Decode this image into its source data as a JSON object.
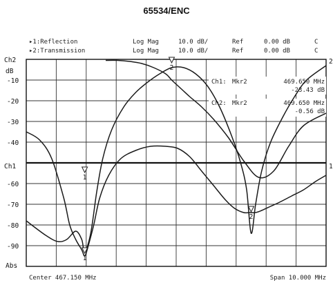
{
  "chart_data": {
    "type": "line",
    "title": "65534/ENC",
    "channels": [
      {
        "label": "▸1:Reflection",
        "format": "Log Mag",
        "scale": "10.0 dB/",
        "ref_label": "Ref",
        "ref_value": "0.00 dB",
        "flag": "C"
      },
      {
        "label": "▸2:Transmission",
        "format": "Log Mag",
        "scale": "10.0 dB/",
        "ref_label": "Ref",
        "ref_value": "0.00 dB",
        "flag": "C"
      }
    ],
    "markers": [
      {
        "channel": "Ch1:",
        "name": "Mkr2",
        "freq": "469.650 MHz",
        "value": "-23.43 dB"
      },
      {
        "channel": "Ch2:",
        "name": "Mkr2",
        "freq": "469.650 MHz",
        "value": "-0.56 dB"
      }
    ],
    "center": "Center 467.150 MHz",
    "span": "Span 10.000 MHz",
    "xlim": [
      462.15,
      472.15
    ],
    "ylim": [
      -100,
      0
    ],
    "grid": true,
    "ylabel_unit": "dB",
    "y_ticks": [
      {
        "value": -10,
        "label": "-10"
      },
      {
        "value": -20,
        "label": "-20"
      },
      {
        "value": -30,
        "label": "-30"
      },
      {
        "value": -40,
        "label": "-40"
      },
      {
        "value": -60,
        "label": "-60"
      },
      {
        "value": -70,
        "label": "-70"
      },
      {
        "value": -80,
        "label": "-80"
      },
      {
        "value": -90,
        "label": "-90"
      }
    ],
    "left_labels": {
      "top": "Ch2",
      "mid": "Ch1",
      "bottom": "Abs"
    },
    "right_labels": {
      "top": "2",
      "mid": "1"
    },
    "marker_labels": [
      {
        "text": "1",
        "x": 464.1,
        "y": -56
      },
      {
        "text": "1",
        "x": 464.1,
        "y": -95
      },
      {
        "text": "2",
        "x": 469.65,
        "y": -75
      },
      {
        "text": "2",
        "x": 467.0,
        "y": -3
      }
    ],
    "series": [
      {
        "name": "",
        "x": [
          462.15,
          462.6,
          463.0,
          463.4,
          463.6,
          463.8,
          464.0,
          464.1,
          464.2,
          464.4,
          464.6,
          464.9,
          465.3,
          465.8,
          466.3,
          466.8,
          467.2,
          467.6,
          468.0,
          468.4,
          468.8,
          469.1,
          469.4,
          469.6,
          469.8,
          470.0,
          470.3,
          470.6,
          471.0,
          471.4,
          471.8,
          472.15
        ],
        "values": [
          -35,
          -39,
          -48,
          -67,
          -80,
          -87,
          -92,
          -95,
          -91,
          -80,
          -67,
          -56,
          -48,
          -44,
          -42,
          -42,
          -43,
          -47,
          -54,
          -61,
          -68,
          -72,
          -74,
          -74,
          -74,
          -73,
          -71,
          -69,
          -66,
          -63,
          -59,
          -56
        ]
      },
      {
        "name": "",
        "x": [
          462.15,
          462.8,
          463.2,
          463.5,
          463.8,
          464.0,
          464.1,
          464.3,
          464.5,
          464.7,
          465.0,
          465.4,
          465.8,
          466.2,
          466.6,
          467.0,
          467.4,
          467.8,
          468.2,
          468.6,
          469.0,
          469.3,
          469.5,
          469.65,
          469.8,
          470.0,
          470.3,
          470.7,
          471.1,
          471.5,
          472.15
        ],
        "values": [
          -78,
          -85,
          -88,
          -87,
          -83,
          -87,
          -93,
          -84,
          -64,
          -48,
          -34,
          -23,
          -16,
          -11,
          -7,
          -4,
          -4,
          -7,
          -13,
          -23,
          -37,
          -50,
          -63,
          -84,
          -70,
          -54,
          -40,
          -28,
          -18,
          -10,
          -3
        ]
      },
      {
        "name": "",
        "x": [
          464.8,
          465.2,
          465.6,
          466.0,
          466.4,
          466.8,
          467.0,
          467.3,
          467.6,
          468.0,
          468.4,
          468.9,
          469.4,
          469.9,
          470.4,
          470.9,
          471.4,
          472.15
        ],
        "values": [
          -0.5,
          -0.5,
          -1,
          -2,
          -4,
          -7,
          -10,
          -14,
          -18,
          -23,
          -29,
          -38,
          -49,
          -57,
          -54,
          -42,
          -32,
          -26
        ]
      }
    ]
  }
}
